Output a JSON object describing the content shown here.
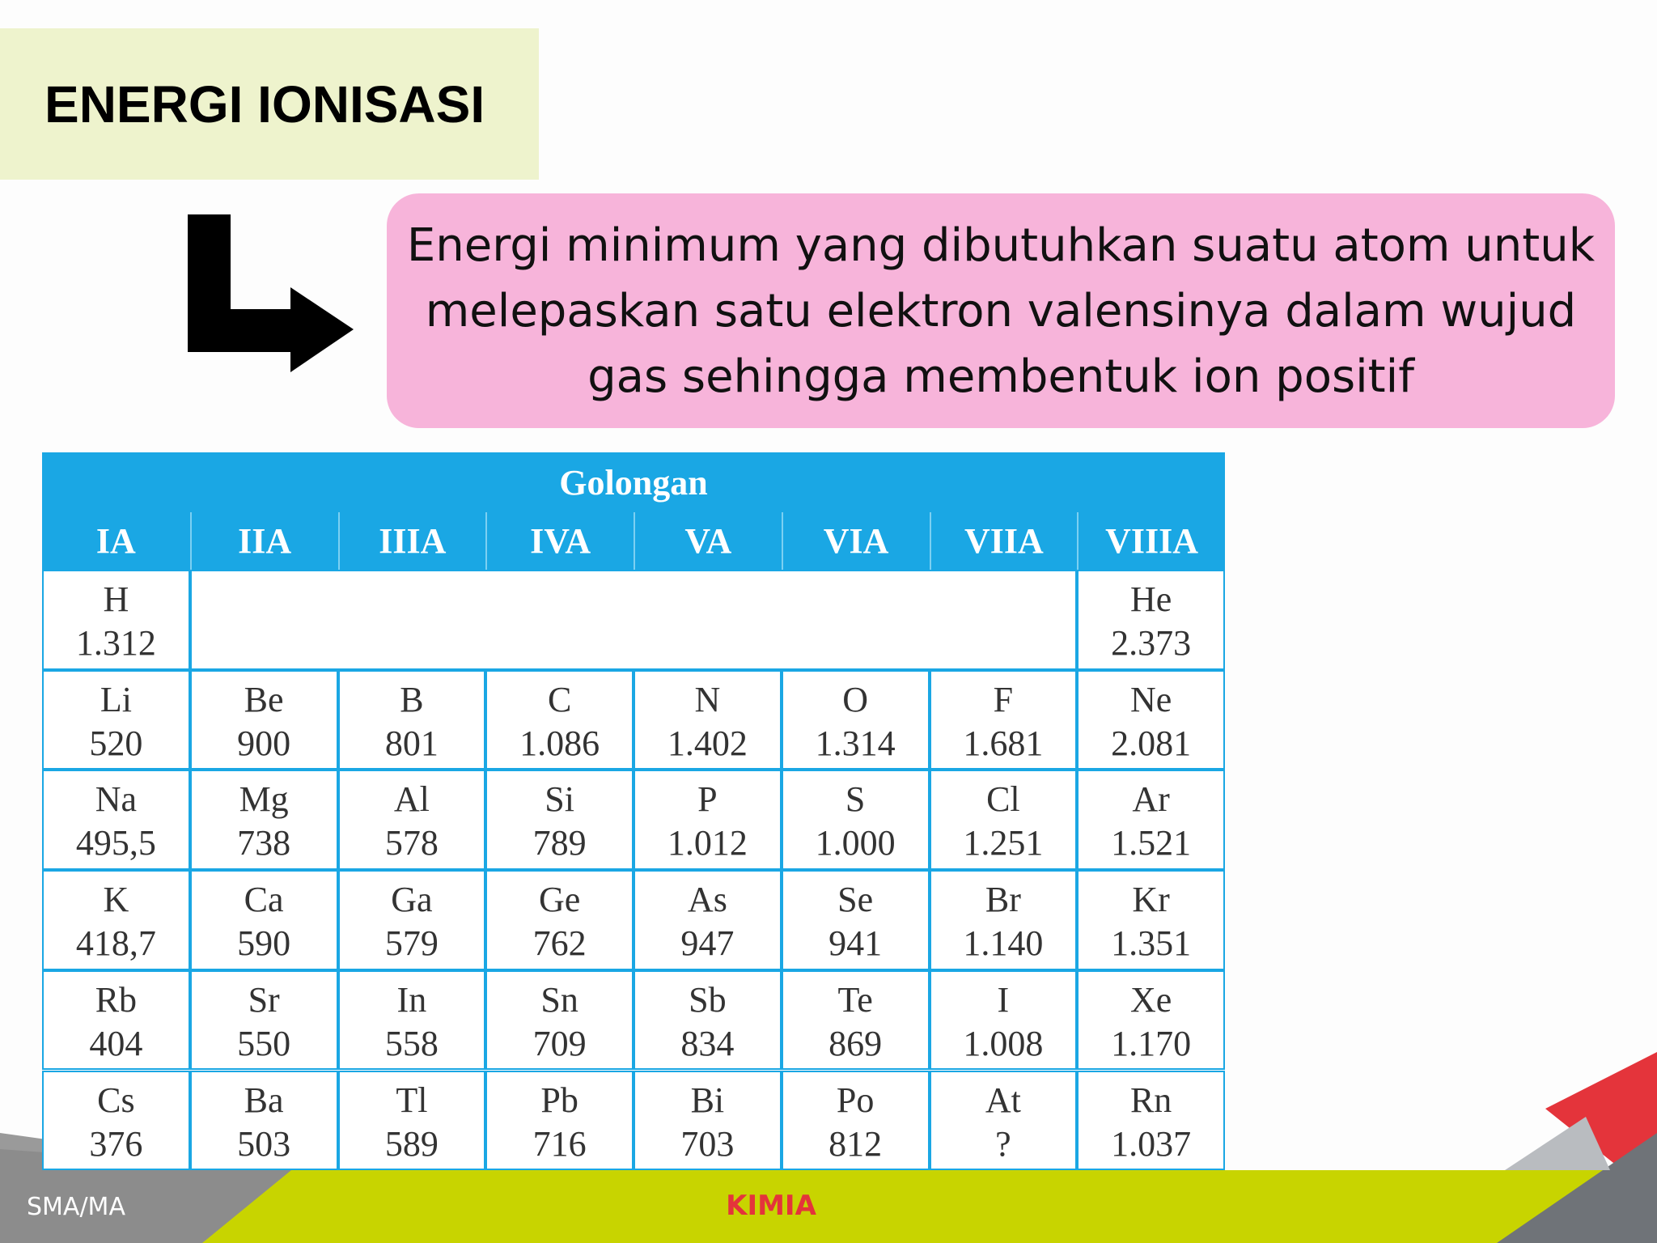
{
  "title": "ENERGI IONISASI",
  "definition": [
    "Energi minimum yang dibutuhkan suatu atom untuk",
    "melepaskan satu elektron valensinya dalam wujud",
    "gas sehingga membentuk ion positif"
  ],
  "table": {
    "header": "Golongan",
    "columns": [
      "IA",
      "IIA",
      "IIIA",
      "IVA",
      "VA",
      "VIA",
      "VIIA",
      "VIIIA"
    ],
    "rows": [
      [
        {
          "symbol": "H",
          "value": "1.312"
        },
        null,
        null,
        null,
        null,
        null,
        null,
        {
          "symbol": "He",
          "value": "2.373"
        }
      ],
      [
        {
          "symbol": "Li",
          "value": "520"
        },
        {
          "symbol": "Be",
          "value": "900"
        },
        {
          "symbol": "B",
          "value": "801"
        },
        {
          "symbol": "C",
          "value": "1.086"
        },
        {
          "symbol": "N",
          "value": "1.402"
        },
        {
          "symbol": "O",
          "value": "1.314"
        },
        {
          "symbol": "F",
          "value": "1.681"
        },
        {
          "symbol": "Ne",
          "value": "2.081"
        }
      ],
      [
        {
          "symbol": "Na",
          "value": "495,5"
        },
        {
          "symbol": "Mg",
          "value": "738"
        },
        {
          "symbol": "Al",
          "value": "578"
        },
        {
          "symbol": "Si",
          "value": "789"
        },
        {
          "symbol": "P",
          "value": "1.012"
        },
        {
          "symbol": "S",
          "value": "1.000"
        },
        {
          "symbol": "Cl",
          "value": "1.251"
        },
        {
          "symbol": "Ar",
          "value": "1.521"
        }
      ],
      [
        {
          "symbol": "K",
          "value": "418,7"
        },
        {
          "symbol": "Ca",
          "value": "590"
        },
        {
          "symbol": "Ga",
          "value": "579"
        },
        {
          "symbol": "Ge",
          "value": "762"
        },
        {
          "symbol": "As",
          "value": "947"
        },
        {
          "symbol": "Se",
          "value": "941"
        },
        {
          "symbol": "Br",
          "value": "1.140"
        },
        {
          "symbol": "Kr",
          "value": "1.351"
        }
      ],
      [
        {
          "symbol": "Rb",
          "value": "404"
        },
        {
          "symbol": "Sr",
          "value": "550"
        },
        {
          "symbol": "In",
          "value": "558"
        },
        {
          "symbol": "Sn",
          "value": "709"
        },
        {
          "symbol": "Sb",
          "value": "834"
        },
        {
          "symbol": "Te",
          "value": "869"
        },
        {
          "symbol": "I",
          "value": "1.008"
        },
        {
          "symbol": "Xe",
          "value": "1.170"
        }
      ],
      [
        {
          "symbol": "Cs",
          "value": "376"
        },
        {
          "symbol": "Ba",
          "value": "503"
        },
        {
          "symbol": "Tl",
          "value": "589"
        },
        {
          "symbol": "Pb",
          "value": "716"
        },
        {
          "symbol": "Bi",
          "value": "703"
        },
        {
          "symbol": "Po",
          "value": "812"
        },
        {
          "symbol": "At",
          "value": "?"
        },
        {
          "symbol": "Rn",
          "value": "1.037"
        }
      ]
    ]
  },
  "footer": {
    "left": "SMA/MA",
    "center": "KIMIA"
  }
}
